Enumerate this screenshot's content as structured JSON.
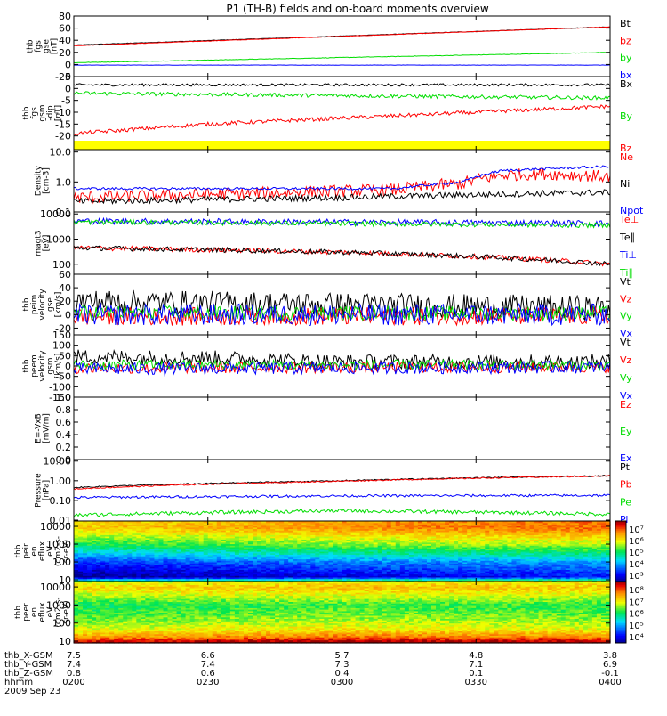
{
  "title": "P1 (TH-B) fields and on-board moments overview",
  "colors": {
    "black": "#000000",
    "red": "#ff0000",
    "green": "#00dd00",
    "blue": "#0000ff",
    "yellow": "#ffff00"
  },
  "chart_data": [
    {
      "type": "line",
      "panel_id": "fgs_gse",
      "ylabel": [
        "thb",
        "fgs",
        "gse",
        "[nT]"
      ],
      "ylim": [
        -20,
        80
      ],
      "yticks": [
        "80",
        "60",
        "40",
        "20",
        "0",
        "-20"
      ],
      "x_hours": [
        2.0,
        4.0
      ],
      "series": [
        {
          "name": "Bt",
          "color": "#000000",
          "points": [
            [
              2.0,
              32
            ],
            [
              4.0,
              62
            ]
          ]
        },
        {
          "name": "bz",
          "color": "#ff0000",
          "points": [
            [
              2.0,
              31
            ],
            [
              4.0,
              62
            ]
          ]
        },
        {
          "name": "by",
          "color": "#00dd00",
          "points": [
            [
              2.0,
              3
            ],
            [
              4.0,
              20
            ]
          ]
        },
        {
          "name": "bx",
          "color": "#0000ff",
          "points": [
            [
              2.0,
              -1
            ],
            [
              4.0,
              -1
            ]
          ]
        }
      ]
    },
    {
      "type": "line",
      "panel_id": "fgs_gsm_dip",
      "ylabel": [
        "thb",
        "fgs",
        "gsm",
        "-dip",
        "[nT]"
      ],
      "ylim": [
        -22,
        5
      ],
      "yticks": [
        "5",
        "0",
        "-5",
        "-10",
        "-15",
        "-20"
      ],
      "x_hours": [
        2.0,
        4.0
      ],
      "series": [
        {
          "name": "Bx",
          "color": "#000000",
          "points": [
            [
              2.0,
              1.5
            ],
            [
              4.0,
              1.5
            ]
          ]
        },
        {
          "name": "By",
          "color": "#00dd00",
          "points": [
            [
              2.0,
              -2
            ],
            [
              4.0,
              -4
            ]
          ]
        },
        {
          "name": "Bz",
          "color": "#ff0000",
          "points": [
            [
              2.0,
              -19
            ],
            [
              2.5,
              -15
            ],
            [
              3.0,
              -12.5
            ],
            [
              3.5,
              -10
            ],
            [
              4.0,
              -7.5
            ]
          ]
        }
      ]
    },
    {
      "type": "line",
      "panel_id": "density",
      "ylabel": [
        "Density",
        "[cm-3]"
      ],
      "yscale": "log",
      "ylim": [
        0.1,
        12
      ],
      "yticks": [
        "10.0",
        "1.0",
        "0.1"
      ],
      "x_hours": [
        2.0,
        4.0
      ],
      "series": [
        {
          "name": "Ne",
          "color": "#ff0000",
          "points": [
            [
              2.0,
              0.3
            ],
            [
              2.6,
              0.4
            ],
            [
              3.2,
              0.55
            ],
            [
              3.45,
              0.9
            ],
            [
              3.6,
              1.7
            ],
            [
              3.75,
              1.9
            ],
            [
              4.0,
              1.5
            ]
          ]
        },
        {
          "name": "Ni",
          "color": "#000000",
          "points": [
            [
              2.0,
              0.22
            ],
            [
              3.0,
              0.3
            ],
            [
              4.0,
              0.45
            ]
          ]
        },
        {
          "name": "Npot",
          "color": "#0000ff",
          "points": [
            [
              2.0,
              0.6
            ],
            [
              3.2,
              0.6
            ],
            [
              3.45,
              1.0
            ],
            [
              3.6,
              2.4
            ],
            [
              4.0,
              3.3
            ]
          ]
        }
      ]
    },
    {
      "type": "line",
      "panel_id": "temperature",
      "ylabel": [
        "magt3",
        "[eV]"
      ],
      "yscale": "log",
      "ylim": [
        40,
        12000
      ],
      "yticks": [
        "10000",
        "1000",
        "100"
      ],
      "x_hours": [
        2.0,
        4.0
      ],
      "series": [
        {
          "name": "Te⊥",
          "color": "#ff0000",
          "points": [
            [
              2.0,
              450
            ],
            [
              3.0,
              300
            ],
            [
              3.5,
              200
            ],
            [
              4.0,
              100
            ]
          ]
        },
        {
          "name": "Te∥",
          "color": "#000000",
          "points": [
            [
              2.0,
              450
            ],
            [
              3.0,
              300
            ],
            [
              3.5,
              200
            ],
            [
              4.0,
              100
            ]
          ]
        },
        {
          "name": "Ti⊥",
          "color": "#0000ff",
          "points": [
            [
              2.0,
              5200
            ],
            [
              4.0,
              4200
            ]
          ]
        },
        {
          "name": "Ti∥",
          "color": "#00dd00",
          "points": [
            [
              2.0,
              4800
            ],
            [
              4.0,
              3500
            ]
          ]
        }
      ]
    },
    {
      "type": "line",
      "panel_id": "peim_velocity_gse",
      "ylabel": [
        "thb",
        "peim",
        "velocity",
        "gse",
        "[km/s]"
      ],
      "ylim": [
        -30,
        60
      ],
      "yticks": [
        "60",
        "40",
        "20",
        "0",
        "-20"
      ],
      "x_hours": [
        2.0,
        4.0
      ],
      "series": [
        {
          "name": "Vt",
          "color": "#000000",
          "points": [
            [
              2.0,
              20
            ],
            [
              4.0,
              10
            ]
          ]
        },
        {
          "name": "Vz",
          "color": "#ff0000",
          "points": [
            [
              2.0,
              -3
            ],
            [
              4.0,
              -2
            ]
          ]
        },
        {
          "name": "Vy",
          "color": "#00dd00",
          "points": [
            [
              2.0,
              3
            ],
            [
              4.0,
              2
            ]
          ]
        },
        {
          "name": "Vx",
          "color": "#0000ff",
          "points": [
            [
              2.0,
              0
            ],
            [
              4.0,
              0
            ]
          ]
        }
      ]
    },
    {
      "type": "line",
      "panel_id": "peem_velocity_gsm",
      "ylabel": [
        "thb",
        "peem",
        "velocity",
        "gsm",
        "[km/s]"
      ],
      "ylim": [
        -150,
        150
      ],
      "yticks": [
        "150",
        "100",
        "50",
        "0",
        "-50",
        "-100",
        "-150"
      ],
      "x_hours": [
        2.0,
        4.0
      ],
      "series": [
        {
          "name": "Vt",
          "color": "#000000",
          "points": [
            [
              2.0,
              45
            ],
            [
              2.5,
              40
            ],
            [
              3.0,
              20
            ],
            [
              4.0,
              20
            ]
          ]
        },
        {
          "name": "Vz",
          "color": "#ff0000",
          "points": [
            [
              2.0,
              -10
            ],
            [
              4.0,
              -5
            ]
          ]
        },
        {
          "name": "Vy",
          "color": "#00dd00",
          "points": [
            [
              2.0,
              5
            ],
            [
              4.0,
              5
            ]
          ]
        },
        {
          "name": "Vx",
          "color": "#0000ff",
          "points": [
            [
              2.0,
              -15
            ],
            [
              4.0,
              -5
            ]
          ]
        }
      ]
    },
    {
      "type": "line",
      "panel_id": "efield",
      "ylabel": [
        "E=-VxB",
        "[mV/m]"
      ],
      "ylim": [
        0,
        1
      ],
      "yticks": [
        "1.0",
        "0.8",
        "0.6",
        "0.4",
        "0.2",
        "0.0"
      ],
      "x_hours": [
        2.0,
        4.0
      ],
      "series": [
        {
          "name": "Ez",
          "color": "#ff0000",
          "points": []
        },
        {
          "name": "Ey",
          "color": "#00dd00",
          "points": []
        },
        {
          "name": "Ex",
          "color": "#0000ff",
          "points": []
        }
      ]
    },
    {
      "type": "line",
      "panel_id": "pressure",
      "ylabel": [
        "Pressure",
        "[nPa]"
      ],
      "yscale": "log",
      "ylim": [
        0.009,
        12
      ],
      "yticks": [
        "10.00",
        "1.00",
        "0.10",
        "0.01"
      ],
      "x_hours": [
        2.0,
        4.0
      ],
      "series": [
        {
          "name": "Pt",
          "color": "#000000",
          "points": [
            [
              2.0,
              0.45
            ],
            [
              3.0,
              1.0
            ],
            [
              4.0,
              1.8
            ]
          ]
        },
        {
          "name": "Pb",
          "color": "#ff0000",
          "points": [
            [
              2.0,
              0.38
            ],
            [
              3.0,
              0.95
            ],
            [
              4.0,
              1.75
            ]
          ]
        },
        {
          "name": "Pe",
          "color": "#00dd00",
          "points": [
            [
              2.0,
              0.018
            ],
            [
              3.0,
              0.03
            ],
            [
              4.0,
              0.02
            ]
          ]
        },
        {
          "name": "Pi",
          "color": "#0000ff",
          "points": [
            [
              2.0,
              0.14
            ],
            [
              3.0,
              0.17
            ],
            [
              4.0,
              0.18
            ]
          ]
        }
      ]
    },
    {
      "type": "heatmap",
      "panel_id": "peir_spectrogram",
      "ylabel": [
        "thb",
        "peir",
        "en",
        "eflux",
        "eV",
        "(cm2-s-",
        "sr-eV)"
      ],
      "yscale": "log",
      "ylim": [
        8,
        20000
      ],
      "yticks": [
        "10000",
        "1000",
        "100",
        "10"
      ],
      "colorbar_ticks": [
        "10⁷",
        "10⁶",
        "10⁵",
        "10⁴",
        "10³"
      ],
      "colorbar_range_exp": [
        2.8,
        7.6
      ],
      "x_hours": [
        2.0,
        4.0
      ],
      "profile_exp": [
        [
          8,
          6.0
        ],
        [
          15,
          3.2
        ],
        [
          40,
          3.6
        ],
        [
          100,
          4.0
        ],
        [
          300,
          4.8
        ],
        [
          1000,
          5.6
        ],
        [
          3000,
          6.1
        ],
        [
          6000,
          6.5
        ],
        [
          10000,
          6.7
        ],
        [
          20000,
          6.6
        ]
      ],
      "time_trend_exp": [
        [
          2.0,
          -0.4
        ],
        [
          3.0,
          0.0
        ],
        [
          4.0,
          0.2
        ]
      ]
    },
    {
      "type": "heatmap",
      "panel_id": "peer_spectrogram",
      "ylabel": [
        "thb",
        "peer",
        "en",
        "eflux",
        "eV",
        "(cm2-s-",
        "sr-eV)"
      ],
      "yscale": "log",
      "ylim": [
        8,
        20000
      ],
      "yticks": [
        "10000",
        "1000",
        "100",
        "10"
      ],
      "colorbar_ticks": [
        "10⁸",
        "10⁷",
        "10⁶",
        "10⁵",
        "10⁴"
      ],
      "colorbar_range_exp": [
        3.5,
        8.0
      ],
      "x_hours": [
        2.0,
        4.0
      ],
      "profile_exp": [
        [
          8,
          8.0
        ],
        [
          12,
          7.6
        ],
        [
          20,
          7.0
        ],
        [
          50,
          6.4
        ],
        [
          200,
          6.0
        ],
        [
          1000,
          5.7
        ],
        [
          3000,
          6.2
        ],
        [
          10000,
          6.7
        ],
        [
          20000,
          6.4
        ]
      ],
      "time_trend_exp": [
        [
          2.0,
          0.0
        ],
        [
          3.0,
          0.2
        ],
        [
          4.0,
          0.1
        ]
      ]
    }
  ],
  "orbit_table": {
    "row_labels": [
      "thb_X-GSM",
      "thb_Y-GSM",
      "thb_Z-GSM",
      "hhmm",
      "2009 Sep 23"
    ],
    "columns": [
      [
        "7.5",
        "7.4",
        "0.8",
        "0200"
      ],
      [
        "6.6",
        "7.4",
        "0.6",
        "0230"
      ],
      [
        "5.7",
        "7.3",
        "0.4",
        "0300"
      ],
      [
        "4.8",
        "7.1",
        "0.1",
        "0330"
      ],
      [
        "3.8",
        "6.9",
        "-0.1",
        "0400"
      ]
    ]
  }
}
